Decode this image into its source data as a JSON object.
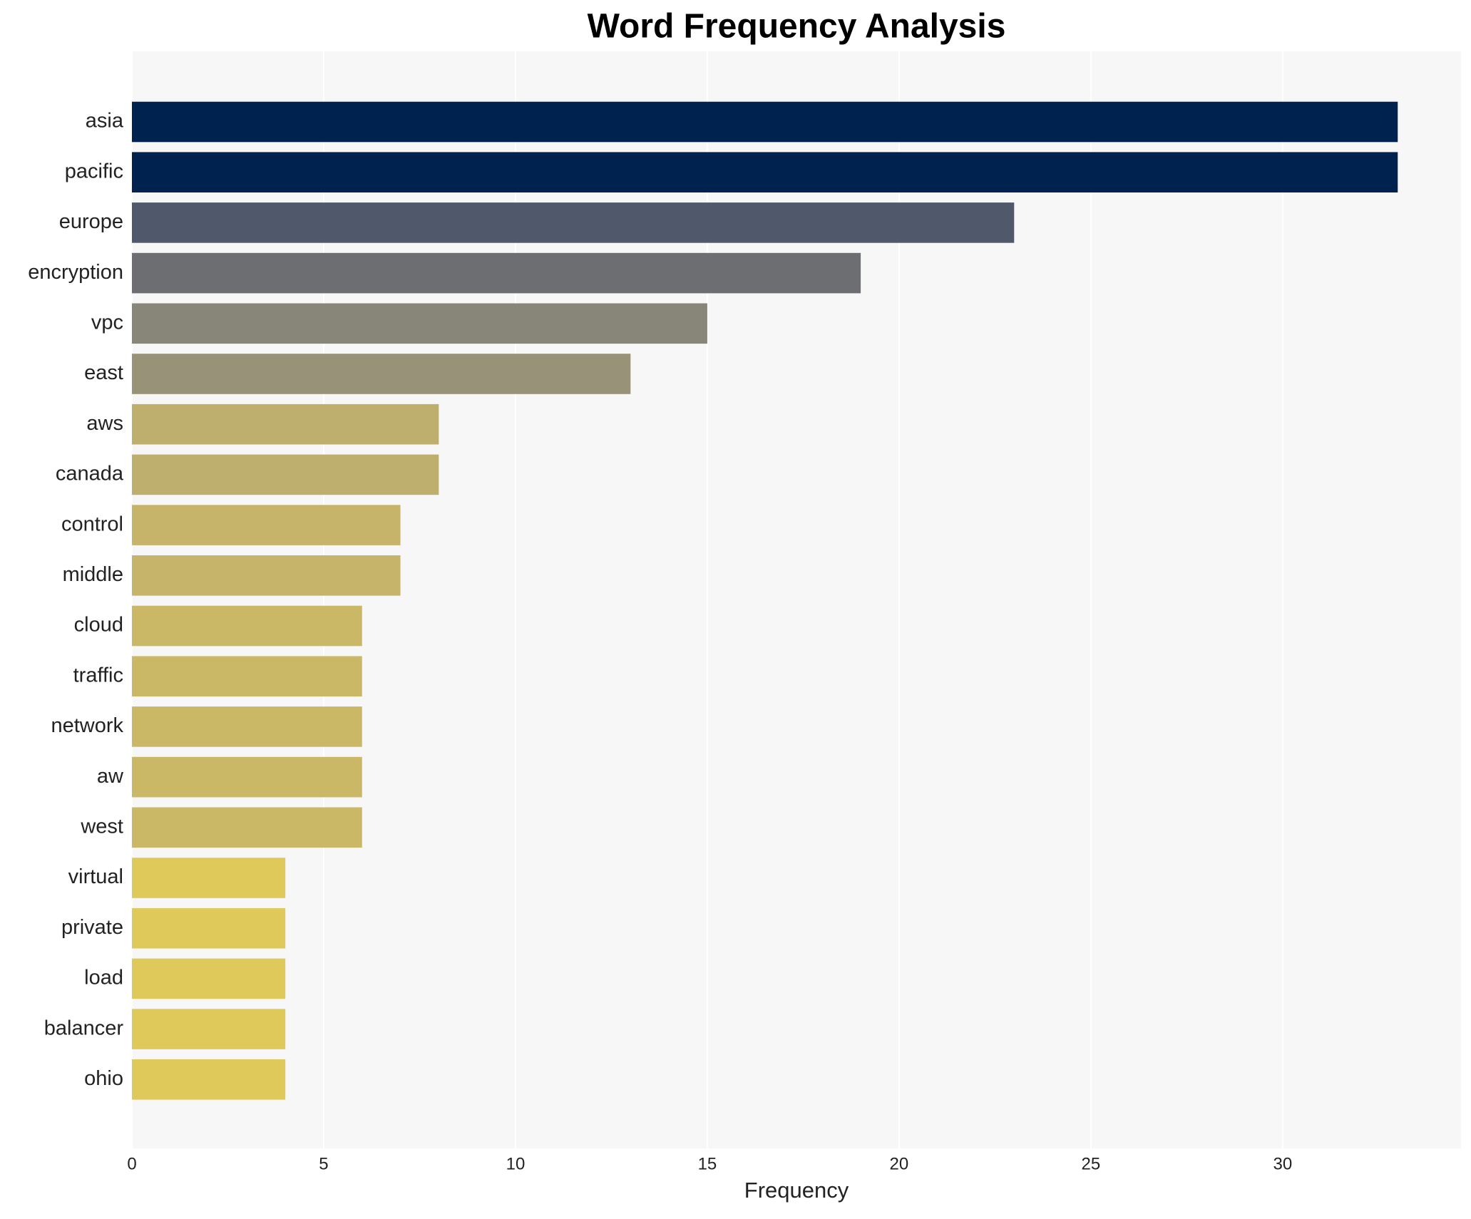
{
  "chart_data": {
    "type": "barh",
    "title": "Word Frequency Analysis",
    "xlabel": "Frequency",
    "categories": [
      "asia",
      "pacific",
      "europe",
      "encryption",
      "vpc",
      "east",
      "aws",
      "canada",
      "control",
      "middle",
      "cloud",
      "traffic",
      "network",
      "aw",
      "west",
      "virtual",
      "private",
      "load",
      "balancer",
      "ohio"
    ],
    "values": [
      33,
      33,
      23,
      19,
      15,
      13,
      8,
      8,
      7,
      7,
      6,
      6,
      6,
      6,
      6,
      4,
      4,
      4,
      4,
      4
    ],
    "colors": [
      "#00224e",
      "#00224e",
      "#50586c",
      "#6c6e72",
      "#878678",
      "#989279",
      "#bfaf6e",
      "#bfaf6e",
      "#c5b46a",
      "#c5b46a",
      "#cbb866",
      "#cbb866",
      "#cbb866",
      "#cbb866",
      "#cbb866",
      "#dfc95a",
      "#dfc95a",
      "#dfc95a",
      "#dfc95a",
      "#dfc95a"
    ],
    "xlim": [
      0,
      34.65
    ],
    "xticks": [
      0,
      5,
      10,
      15,
      20,
      25,
      30
    ],
    "grid": true
  }
}
